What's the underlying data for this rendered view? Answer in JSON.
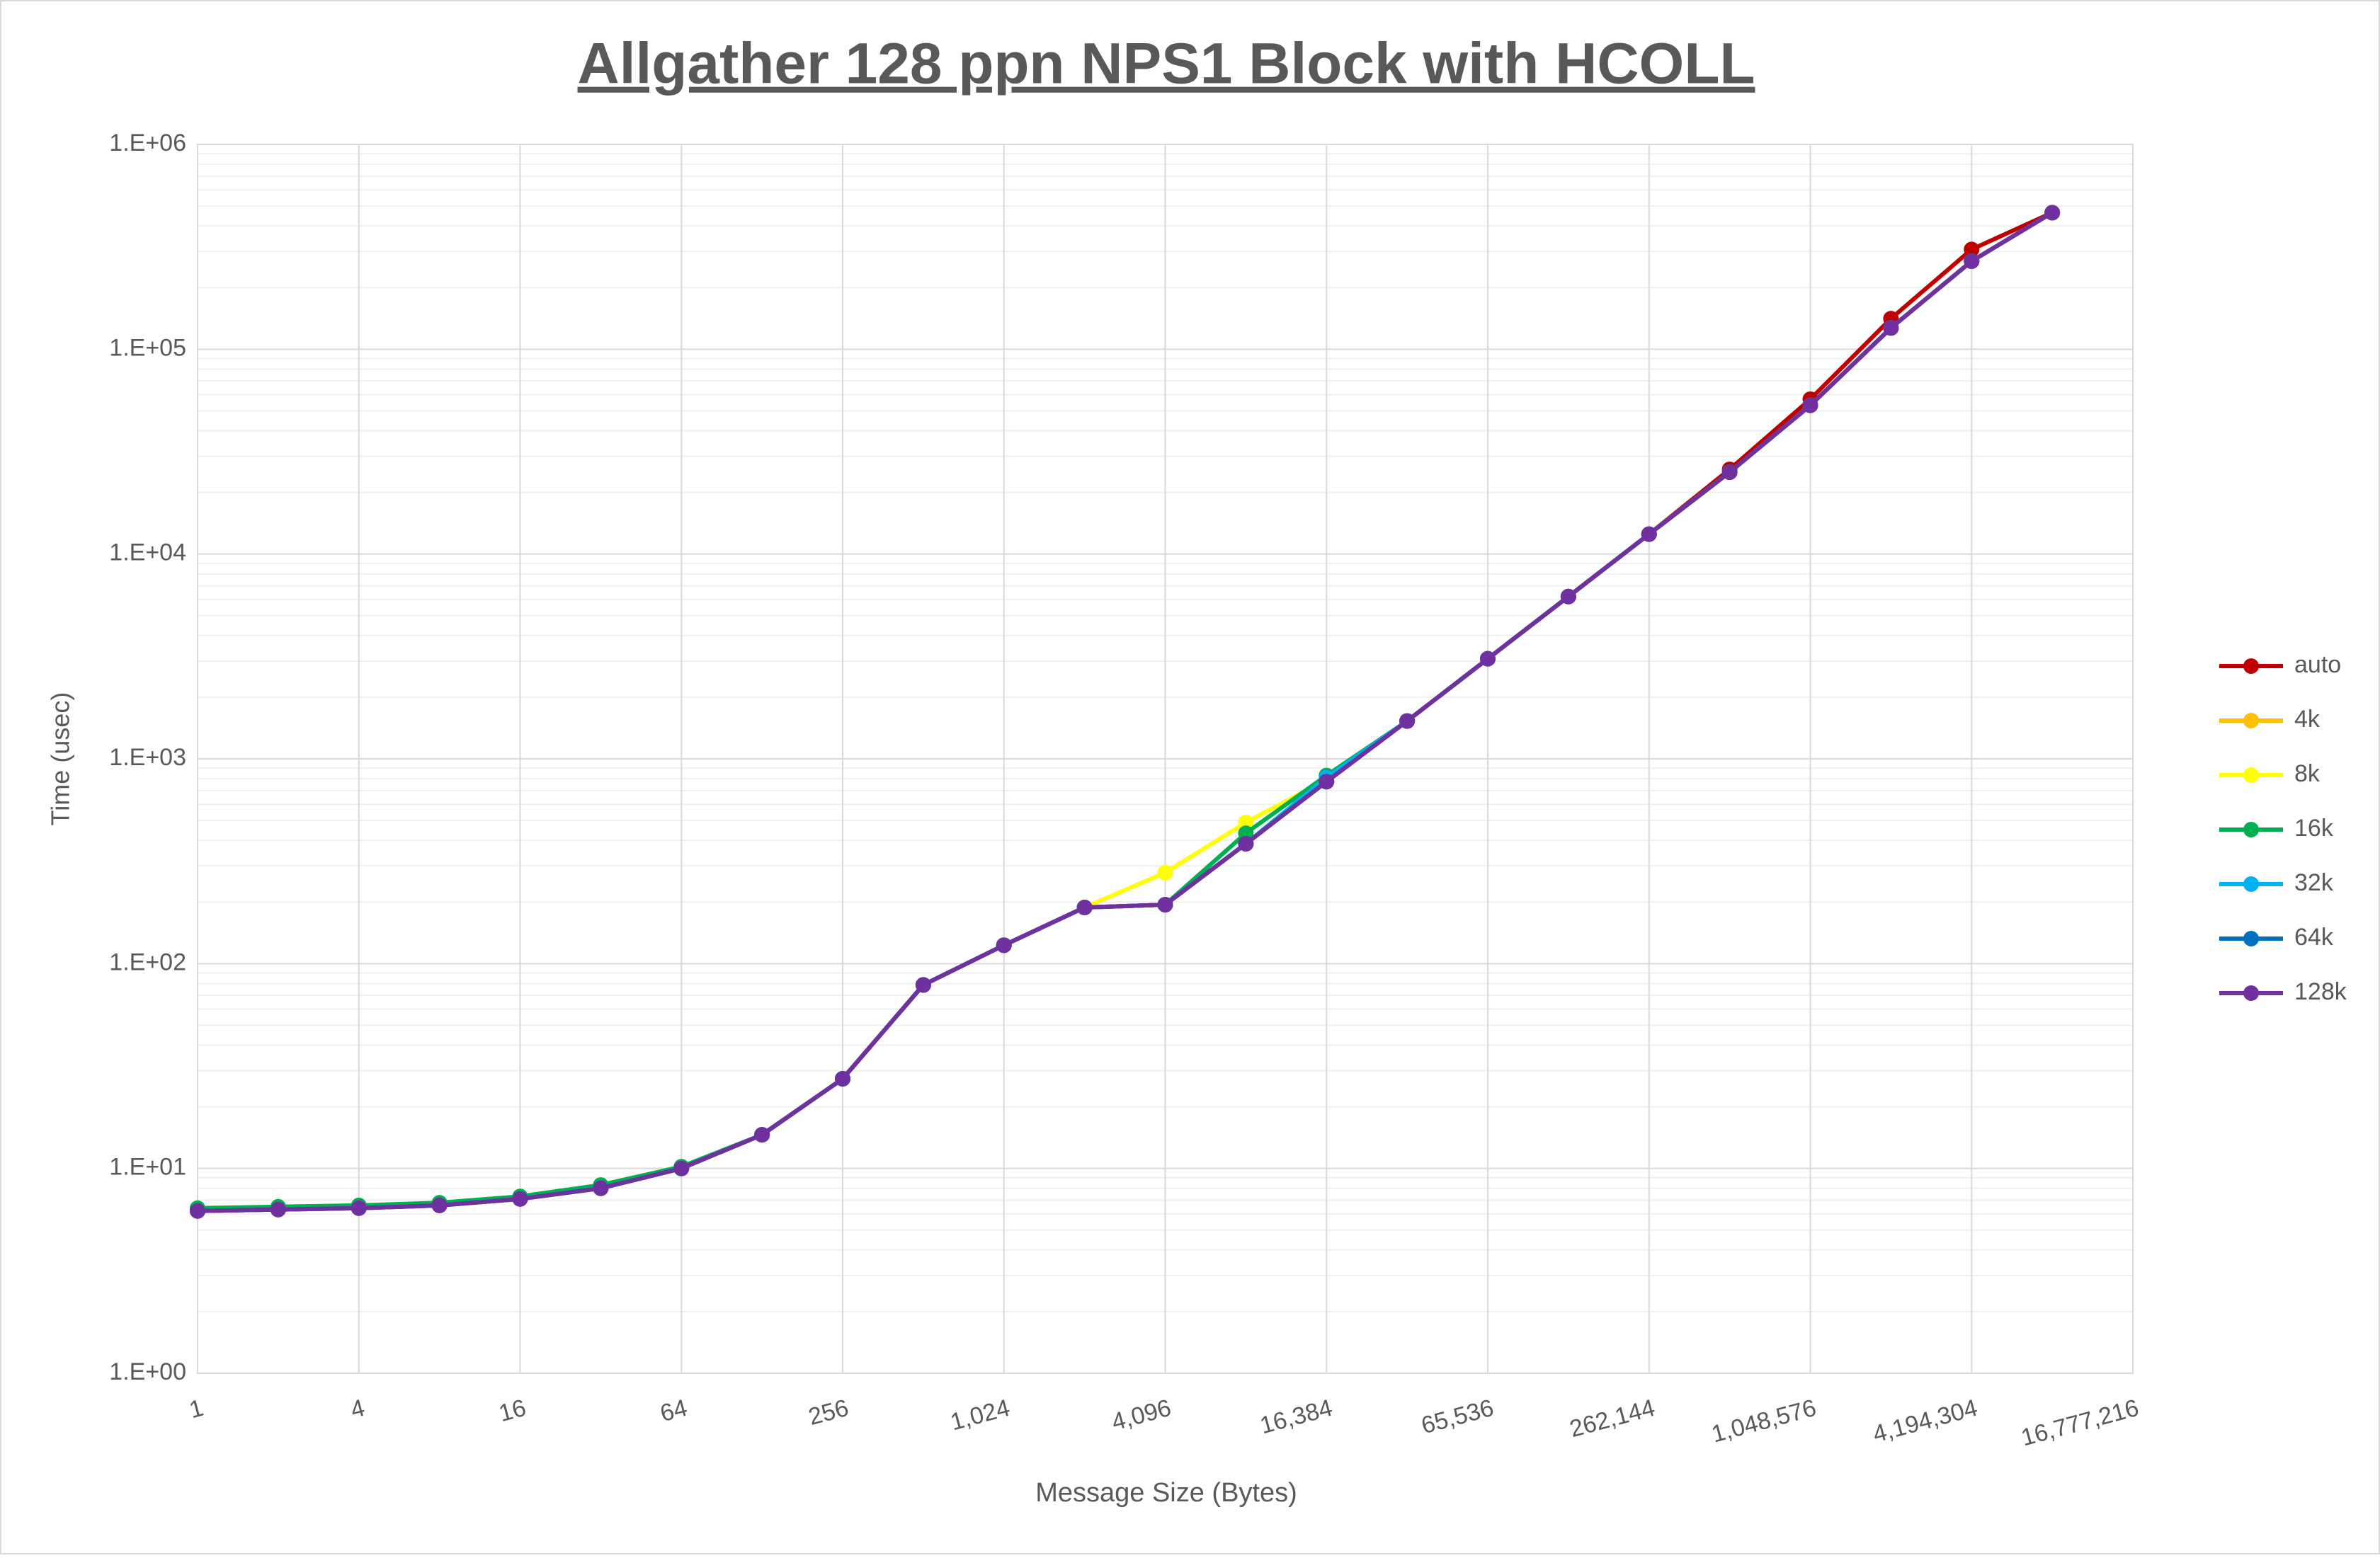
{
  "chart_data": {
    "type": "line",
    "title": "Allgather 128 ppn NPS1 Block with HCOLL",
    "x_label": "Message Size (Bytes)",
    "y_label": "Time (usec)",
    "x": [
      1,
      2,
      4,
      8,
      16,
      32,
      64,
      128,
      256,
      512,
      1024,
      2048,
      4096,
      8192,
      16384,
      32768,
      65536,
      131072,
      262144,
      524288,
      1048576,
      2097152,
      4194304,
      8388608
    ],
    "xscale": "log",
    "yscale": "log",
    "xlim": [
      1,
      16777216
    ],
    "ylim": [
      1,
      1000000
    ],
    "xticks": [
      1,
      4,
      16,
      64,
      256,
      {
        "value": 1024,
        "label": "1,024"
      },
      {
        "value": 4096,
        "label": "4,096"
      },
      {
        "value": 16384,
        "label": "16,384"
      },
      {
        "value": 65536,
        "label": "65,536"
      },
      {
        "value": 262144,
        "label": "262,144"
      },
      {
        "value": 1048576,
        "label": "1,048,576"
      },
      {
        "value": 4194304,
        "label": "4,194,304"
      },
      {
        "value": 16777216,
        "label": "16,777,216"
      }
    ],
    "yticks": [
      {
        "value": 1,
        "label": "1.E+00"
      },
      {
        "value": 10,
        "label": "1.E+01"
      },
      {
        "value": 100,
        "label": "1.E+02"
      },
      {
        "value": 1000,
        "label": "1.E+03"
      },
      {
        "value": 10000,
        "label": "1.E+04"
      },
      {
        "value": 100000,
        "label": "1.E+05"
      },
      {
        "value": 1000000,
        "label": "1.E+06"
      }
    ],
    "grid": true,
    "legend_position": "right",
    "series": [
      {
        "name": "auto",
        "color": "#c00000",
        "values": [
          6.2,
          6.3,
          6.4,
          6.6,
          7.1,
          8.0,
          10,
          14.6,
          27.4,
          78.7,
          123,
          188,
          194,
          385,
          774,
          1530,
          3080,
          6200,
          12500,
          25900,
          57000,
          141000,
          307000,
          464000
        ]
      },
      {
        "name": "4k",
        "color": "#ffc000",
        "values": [
          6.2,
          6.3,
          6.4,
          6.6,
          7.1,
          8.0,
          10,
          14.6,
          27.4,
          78.7,
          123,
          188,
          194,
          385,
          774,
          1530,
          3080,
          6200,
          12500,
          25100,
          53200,
          127000,
          269000,
          464000
        ]
      },
      {
        "name": "8k",
        "color": "#ffff00",
        "values": [
          6.2,
          6.3,
          6.4,
          6.6,
          7.1,
          8.0,
          10,
          14.6,
          27.4,
          78.7,
          123,
          188,
          278,
          489,
          790,
          1530,
          3080,
          6200,
          12500,
          25100,
          53200,
          127000,
          269000,
          464000
        ]
      },
      {
        "name": "16k",
        "color": "#00b050",
        "values": [
          6.4,
          6.5,
          6.6,
          6.8,
          7.3,
          8.3,
          10.2,
          14.6,
          27.4,
          78.7,
          123,
          188,
          194,
          433,
          829,
          1530,
          3080,
          6200,
          12500,
          25100,
          53200,
          127000,
          269000,
          464000
        ]
      },
      {
        "name": "32k",
        "color": "#00b0f0",
        "values": [
          6.2,
          6.3,
          6.4,
          6.6,
          7.1,
          8.0,
          10,
          14.6,
          27.4,
          78.7,
          123,
          188,
          194,
          385,
          810,
          1530,
          3080,
          6200,
          12500,
          25100,
          53200,
          127000,
          269000,
          464000
        ]
      },
      {
        "name": "64k",
        "color": "#0070c0",
        "values": [
          6.2,
          6.3,
          6.4,
          6.6,
          7.1,
          8.0,
          10,
          14.6,
          27.4,
          78.7,
          123,
          188,
          194,
          385,
          774,
          1530,
          3080,
          6200,
          12500,
          25100,
          53200,
          127000,
          269000,
          464000
        ]
      },
      {
        "name": "128k",
        "color": "#7030a0",
        "values": [
          6.2,
          6.3,
          6.4,
          6.6,
          7.1,
          8.0,
          10,
          14.6,
          27.4,
          78.7,
          123,
          188,
          194,
          385,
          774,
          1530,
          3080,
          6200,
          12500,
          25100,
          53200,
          127000,
          269000,
          464000
        ]
      }
    ]
  }
}
